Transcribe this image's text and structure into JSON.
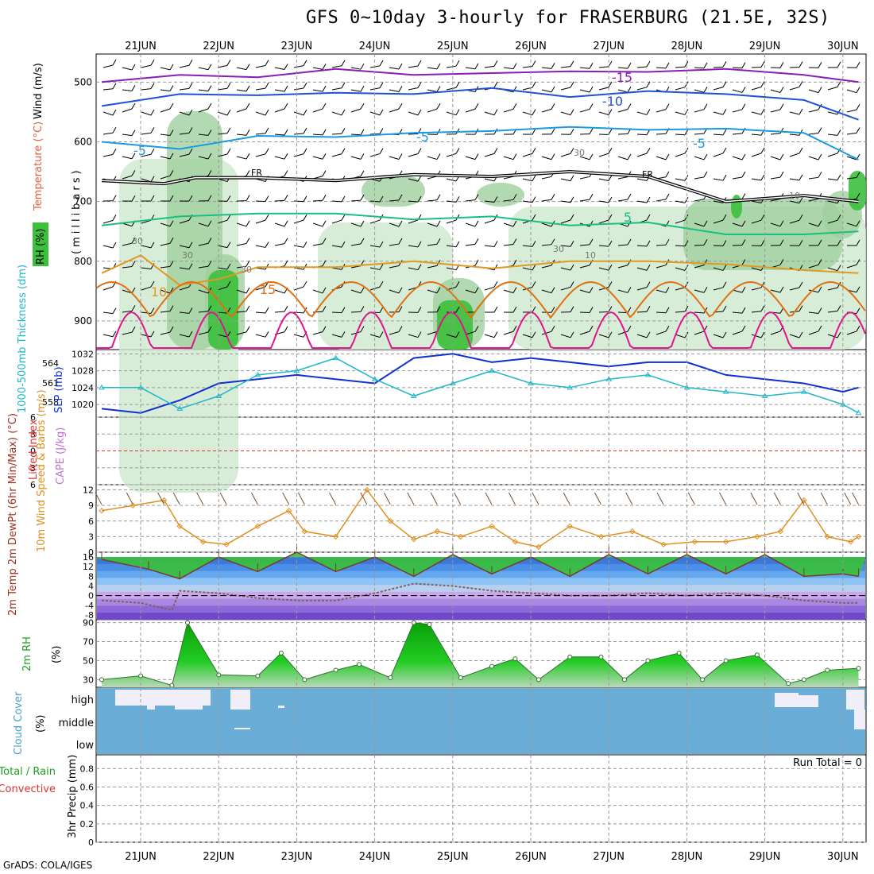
{
  "title": "GFS 0~10day 3-hourly for FRASERBURG (21.5E, 32S)",
  "footer": "GrADS: COLA/IGES",
  "days": [
    "21JUN",
    "22JUN",
    "23JUN",
    "24JUN",
    "25JUN",
    "26JUN",
    "27JUN",
    "28JUN",
    "29JUN",
    "30JUN"
  ],
  "colors": {
    "grid": "#999999",
    "rh_light": "#cde9cd",
    "rh_mid": "#9fcf9f",
    "rh_dark": "#3cc03c",
    "t_m15": "#8a1cb8",
    "t_m10": "#2050d8",
    "t_m5": "#1a9ae0",
    "t_fr": "#000000",
    "t_5": "#18c080",
    "t_10": "#e09a20",
    "t_15": "#e07010",
    "t_20": "#e0148c",
    "slp": "#1030d0",
    "thick": "#20b8c8",
    "wind10": "#e09020",
    "barb": "#7a5030",
    "temp_top": "#38c038",
    "temp_fill": "#3a82e0",
    "dew": "#806060",
    "rh2_fill": "#22cc22",
    "cloud": "#6aaed8",
    "lifted": "#e03030"
  },
  "chart_data": [
    {
      "panel": "upper_air",
      "type": "area",
      "ylabel": "(millibars)",
      "legend_labels": [
        "Wind (m/s)",
        "Temperature (°C)",
        "RH (%)"
      ],
      "y_ticks": [
        500,
        600,
        700,
        800,
        900
      ],
      "ylim": [
        453,
        948
      ],
      "isotherm_labels": [
        "-15",
        "-10",
        "-5",
        "-5",
        "-5",
        "FR",
        "FR",
        "5",
        "10",
        "15",
        "30",
        "30",
        "30",
        "30",
        "30",
        "10",
        "10"
      ],
      "isotherms": [
        {
          "name": "-15",
          "x": [
            0.0,
            1.0,
            2.0,
            3.0,
            4.0,
            5.0,
            6.0,
            7.0,
            8.0,
            9.0,
            9.7
          ],
          "y": [
            500,
            488,
            492,
            478,
            488,
            485,
            482,
            483,
            478,
            488,
            500
          ]
        },
        {
          "name": "-10",
          "x": [
            0.0,
            1.0,
            2.0,
            3.0,
            4.0,
            5.0,
            6.0,
            7.0,
            8.0,
            9.0,
            9.7
          ],
          "y": [
            540,
            520,
            522,
            518,
            520,
            510,
            525,
            515,
            520,
            530,
            563
          ]
        },
        {
          "name": "-5",
          "x": [
            0.0,
            1.0,
            2.0,
            3.0,
            4.0,
            5.0,
            6.0,
            7.0,
            8.0,
            9.0,
            9.7
          ],
          "y": [
            600,
            612,
            590,
            592,
            585,
            582,
            575,
            580,
            578,
            585,
            630
          ]
        },
        {
          "name": "FR",
          "x": [
            0.0,
            0.8,
            1.2,
            2.0,
            3.0,
            4.0,
            5.0,
            6.0,
            7.0,
            8.0,
            9.0,
            9.7
          ],
          "y": [
            665,
            670,
            660,
            660,
            665,
            655,
            658,
            650,
            658,
            700,
            690,
            700
          ]
        },
        {
          "name": "5",
          "x": [
            0.0,
            1.0,
            2.0,
            3.0,
            4.0,
            5.0,
            6.0,
            7.0,
            8.0,
            9.0,
            9.7
          ],
          "y": [
            740,
            725,
            720,
            720,
            730,
            725,
            740,
            735,
            755,
            755,
            750
          ]
        },
        {
          "name": "10",
          "x": [
            0.0,
            0.5,
            1.0,
            1.5,
            2.0,
            3.0,
            4.0,
            5.0,
            6.0,
            7.0,
            8.0,
            9.0,
            9.7
          ],
          "y": [
            820,
            790,
            840,
            830,
            810,
            810,
            800,
            812,
            800,
            800,
            805,
            815,
            820
          ]
        }
      ],
      "rh_shading_levels": [
        30,
        70,
        90
      ]
    },
    {
      "panel": "slp_thickness",
      "type": "line",
      "left_axis_label": "1000-500mb Thickness (dm)",
      "right_axis_label": "SLP (mb)",
      "left_ticks": [
        558,
        561,
        564
      ],
      "right_ticks": [
        1020,
        1024,
        1028,
        1032
      ],
      "ylim": [
        1017,
        1033
      ],
      "series": [
        {
          "name": "SLP",
          "x": [
            0.0,
            0.5,
            1.0,
            1.5,
            2.0,
            2.5,
            3.0,
            3.5,
            4.0,
            4.5,
            5.0,
            5.5,
            6.0,
            6.5,
            7.0,
            7.5,
            8.0,
            8.5,
            9.0,
            9.5,
            9.7
          ],
          "y": [
            1019,
            1018,
            1021,
            1025,
            1026,
            1027,
            1026,
            1025,
            1031,
            1032,
            1030,
            1031,
            1030,
            1029,
            1030,
            1030,
            1027,
            1026,
            1025,
            1023,
            1024
          ]
        },
        {
          "name": "Thickness",
          "x": [
            0.0,
            0.5,
            1.0,
            1.5,
            2.0,
            2.5,
            3.0,
            3.5,
            4.0,
            4.5,
            5.0,
            5.5,
            6.0,
            6.5,
            7.0,
            7.5,
            8.0,
            8.5,
            9.0,
            9.5,
            9.7
          ],
          "y": [
            1024,
            1024,
            1019,
            1022,
            1027,
            1028,
            1031,
            1026,
            1022,
            1025,
            1028,
            1025,
            1024,
            1026,
            1027,
            1024,
            1023,
            1022,
            1023,
            1020,
            1018
          ]
        }
      ]
    },
    {
      "panel": "stability",
      "type": "line",
      "left_axis_label": "Lifted Index",
      "right_axis_label": "CAPE (J/kg)",
      "y_ticks": [
        -6,
        -3,
        0,
        3,
        6
      ],
      "ylim": [
        -6,
        6
      ],
      "series": [
        {
          "name": "Lifted Index",
          "x": [
            0.0,
            9.7
          ],
          "y": [
            0,
            0
          ]
        }
      ]
    },
    {
      "panel": "wind10",
      "type": "line",
      "ylabel": "10m Wind Speed & Barbs (m/s)",
      "y_ticks": [
        0,
        3,
        6,
        9,
        12
      ],
      "ylim": [
        0,
        13
      ],
      "series": [
        {
          "name": "Speed",
          "x": [
            0.0,
            0.4,
            0.8,
            1.0,
            1.3,
            1.6,
            2.0,
            2.4,
            2.6,
            3.0,
            3.4,
            3.7,
            4.0,
            4.3,
            4.6,
            5.0,
            5.3,
            5.6,
            6.0,
            6.4,
            6.8,
            7.2,
            7.6,
            8.0,
            8.4,
            8.7,
            9.0,
            9.3,
            9.6,
            9.7
          ],
          "y": [
            8,
            9,
            10,
            5,
            2,
            1.5,
            5,
            8,
            4,
            3,
            12,
            6,
            2.5,
            4,
            3,
            5,
            2,
            1,
            5,
            3,
            4,
            1.5,
            2,
            2,
            3,
            4,
            10,
            3,
            2,
            3
          ]
        }
      ]
    },
    {
      "panel": "temperature",
      "type": "area",
      "ylabel": "2m Temp 2m DewPt (6hr Min/Max) (°C)",
      "y_ticks": [
        -8,
        -4,
        0,
        4,
        8,
        12,
        16
      ],
      "ylim": [
        -10,
        18
      ],
      "series": [
        {
          "name": "Temp",
          "x": [
            0.0,
            0.6,
            1.0,
            1.5,
            2.0,
            2.5,
            3.0,
            3.5,
            4.0,
            4.5,
            5.0,
            5.5,
            6.0,
            6.5,
            7.0,
            7.5,
            8.0,
            8.5,
            9.0,
            9.5,
            9.7
          ],
          "y": [
            15,
            11,
            7,
            16,
            10,
            18,
            10,
            16,
            8,
            17,
            9,
            16,
            8,
            17,
            9,
            17,
            9,
            17,
            8,
            9,
            8
          ]
        },
        {
          "name": "DewPt",
          "x": [
            0.0,
            0.5,
            0.9,
            1.0,
            1.5,
            2.0,
            2.5,
            3.0,
            3.5,
            4.0,
            4.5,
            5.0,
            5.5,
            6.0,
            6.5,
            7.0,
            7.5,
            8.0,
            8.5,
            9.0,
            9.5,
            9.7
          ],
          "y": [
            -2,
            -3,
            -6,
            2,
            1,
            -1,
            -2,
            -2,
            1,
            5,
            4,
            2,
            1,
            0,
            0,
            1,
            0,
            1,
            0,
            -2,
            -3,
            -3
          ]
        }
      ]
    },
    {
      "panel": "rh2m",
      "type": "area",
      "ylabel": "2m RH (%)",
      "y_ticks": [
        30,
        50,
        70,
        90
      ],
      "ylim": [
        22,
        93
      ],
      "series": [
        {
          "name": "RH",
          "x": [
            0.0,
            0.5,
            0.9,
            1.1,
            1.5,
            2.0,
            2.3,
            2.6,
            3.0,
            3.3,
            3.7,
            4.0,
            4.2,
            4.6,
            5.0,
            5.3,
            5.6,
            6.0,
            6.4,
            6.7,
            7.0,
            7.4,
            7.7,
            8.0,
            8.4,
            8.8,
            9.0,
            9.3,
            9.7
          ],
          "y": [
            30,
            34,
            24,
            90,
            35,
            34,
            58,
            30,
            40,
            46,
            32,
            90,
            88,
            32,
            44,
            52,
            30,
            54,
            54,
            30,
            50,
            58,
            30,
            50,
            56,
            26,
            30,
            40,
            42
          ]
        }
      ]
    },
    {
      "panel": "cloud",
      "type": "area",
      "ylabel": "Cloud Cover (%)",
      "y_ticks": [
        "high",
        "middle",
        "low"
      ]
    },
    {
      "panel": "precip",
      "type": "bar",
      "ylabel": "3hr Precip (mm)",
      "legend_labels": [
        "Total / Rain",
        "Convective"
      ],
      "y_ticks": [
        0,
        0.2,
        0.4,
        0.6,
        0.8
      ],
      "ylim": [
        0,
        0.95
      ],
      "run_total": "Run Total = 0",
      "values": []
    }
  ]
}
